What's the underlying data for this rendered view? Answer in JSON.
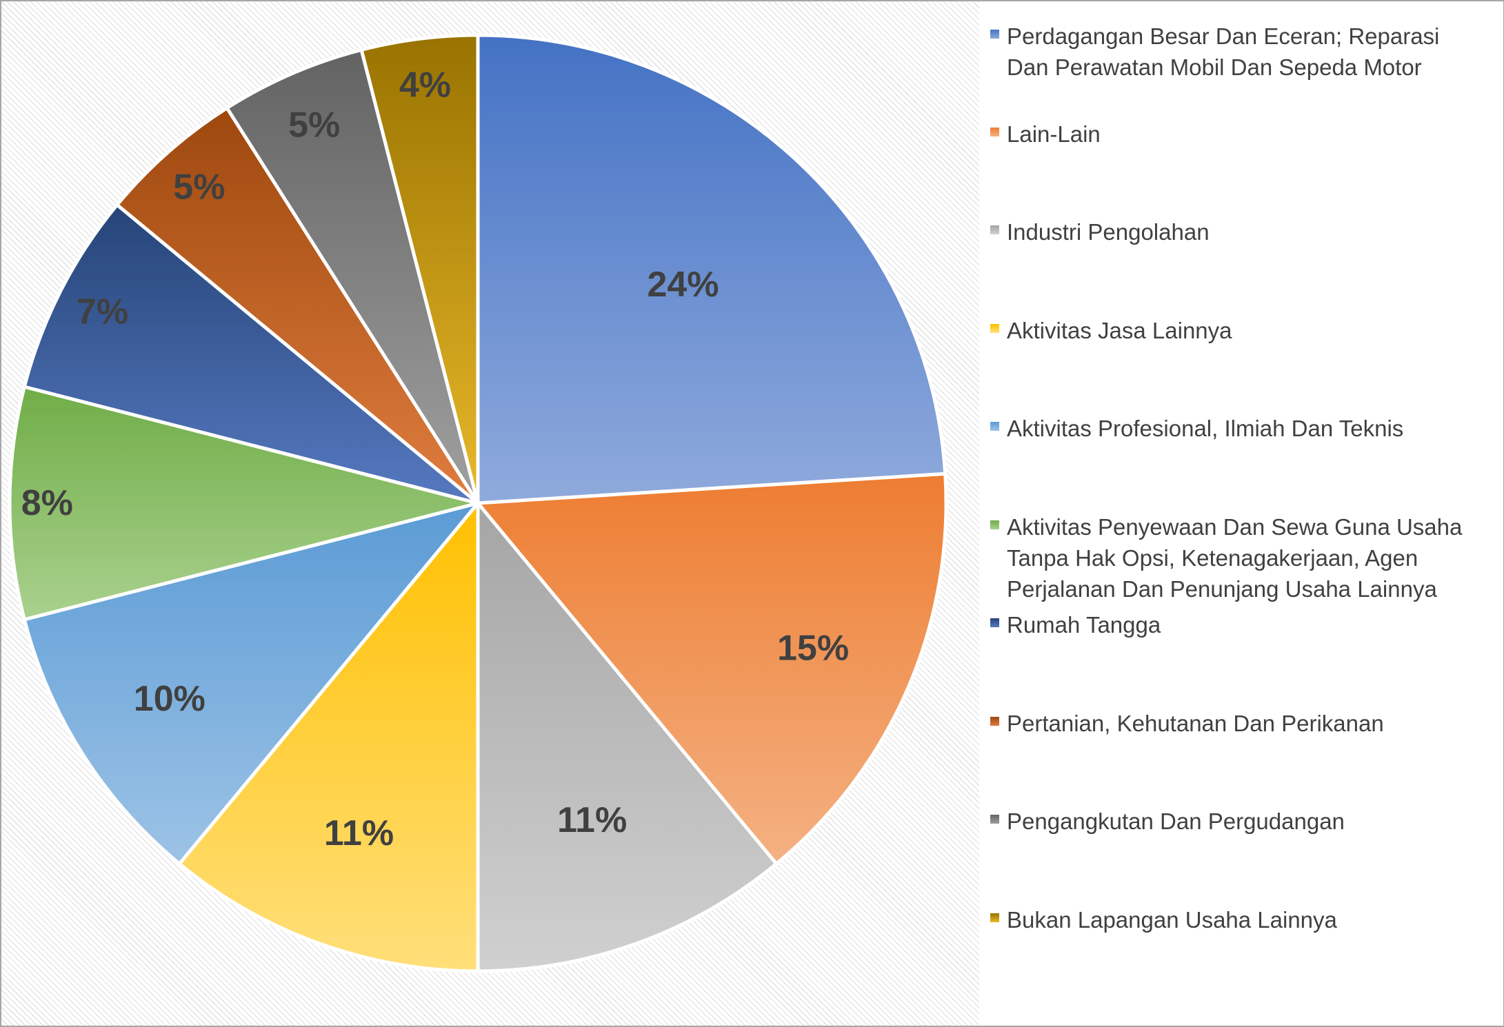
{
  "chart_data": {
    "type": "pie",
    "slices": [
      {
        "label": "Perdagangan Besar Dan Eceran; Reparasi Dan Perawatan Mobil Dan Sepeda Motor",
        "value": 24,
        "display": "24%",
        "color": "#4472c4",
        "light": "#8faadc"
      },
      {
        "label": "Lain-Lain",
        "value": 15,
        "display": "15%",
        "color": "#ed7d31",
        "light": "#f4b183"
      },
      {
        "label": "Industri Pengolahan",
        "value": 11,
        "display": "11%",
        "color": "#a5a5a5",
        "light": "#d0d0d0"
      },
      {
        "label": "Aktivitas Jasa Lainnya",
        "value": 11,
        "display": "11%",
        "color": "#ffc000",
        "light": "#ffdf7a"
      },
      {
        "label": "Aktivitas Profesional, Ilmiah Dan Teknis",
        "value": 10,
        "display": "10%",
        "color": "#5b9bd5",
        "light": "#9dc3e6"
      },
      {
        "label": "Aktivitas Penyewaan Dan Sewa Guna Usaha Tanpa Hak Opsi, Ketenagakerjaan, Agen Perjalanan Dan Penunjang Usaha Lainnya",
        "value": 8,
        "display": "8%",
        "color": "#70ad47",
        "light": "#a9d18e"
      },
      {
        "label": "Rumah Tangga",
        "value": 7,
        "display": "7%",
        "color": "#264478",
        "light": "#5679c0"
      },
      {
        "label": "Pertanian, Kehutanan Dan Perikanan",
        "value": 5,
        "display": "5%",
        "color": "#9e480e",
        "light": "#e07d3f"
      },
      {
        "label": "Pengangkutan Dan Pergudangan",
        "value": 5,
        "display": "5%",
        "color": "#636363",
        "light": "#a0a0a0"
      },
      {
        "label": "Bukan Lapangan Usaha Lainnya",
        "value": 4,
        "display": "4%",
        "color": "#997300",
        "light": "#e8b82a"
      }
    ],
    "legend_position": "right",
    "start_angle_deg": 0,
    "direction": "clockwise",
    "data_labels": "percent"
  }
}
